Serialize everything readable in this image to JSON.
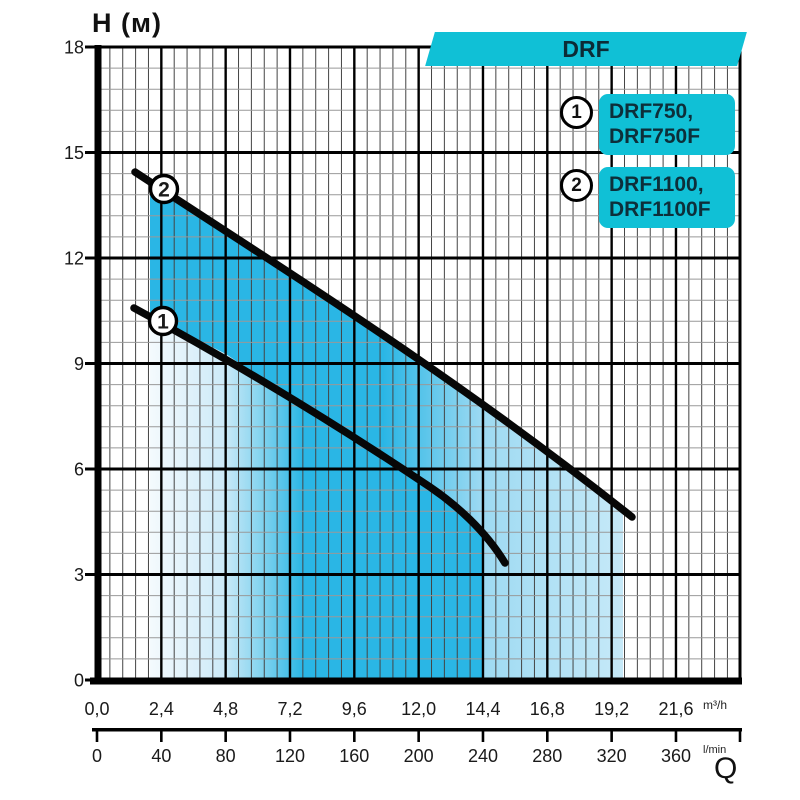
{
  "banner": {
    "label": "DRF"
  },
  "axis_title": "H (м)",
  "q_label": "Q",
  "units": {
    "flow_m3h": "m³/h",
    "flow_lmin": "l/min"
  },
  "legend": [
    {
      "num": "1",
      "lines": [
        "DRF750,",
        "DRF750F"
      ]
    },
    {
      "num": "2",
      "lines": [
        "DRF1100,",
        "DRF1100F"
      ]
    }
  ],
  "colors": {
    "cyan_banner": "#10c0d6",
    "fill_dark": "#2ab6e5",
    "fill_light": "#9edaf2",
    "fill_light_right": "#c6e9f8",
    "fill_pale_left": "#f4fafd",
    "curve": "#070707",
    "grid_major": "#000000",
    "grid_minor_v": "#444444",
    "grid_minor_h": "#999999"
  },
  "chart_data": {
    "type": "line",
    "title": "DRF pump performance curves",
    "xlabel_primary": "Q (m³/h)",
    "xlabel_secondary": "Q (l/min)",
    "ylabel": "H (м)",
    "x_ticks_m3h": [
      "0,0",
      "2,4",
      "4,8",
      "7,2",
      "9,6",
      "12,0",
      "14,4",
      "16,8",
      "19,2",
      "21,6"
    ],
    "x_ticks_m3h_values": [
      0.0,
      2.4,
      4.8,
      7.2,
      9.6,
      12.0,
      14.4,
      16.8,
      19.2,
      21.6
    ],
    "x_ticks_lmin": [
      "0",
      "40",
      "80",
      "120",
      "160",
      "200",
      "240",
      "280",
      "320",
      "360"
    ],
    "x_ticks_lmin_values": [
      0,
      40,
      80,
      120,
      160,
      200,
      240,
      280,
      320,
      360
    ],
    "y_ticks": [
      "0",
      "3",
      "6",
      "9",
      "12",
      "15",
      "18"
    ],
    "y_ticks_values": [
      0,
      3,
      6,
      9,
      12,
      15,
      18
    ],
    "xlim_m3h": [
      0,
      24
    ],
    "ylim": [
      0,
      18
    ],
    "grid": true,
    "legend_position": "top-right",
    "series": [
      {
        "name": "DRF750, DRF750F",
        "marker_label": "1",
        "points_m3h_H": [
          [
            1.4,
            10.6
          ],
          [
            2.4,
            10.2
          ],
          [
            4.8,
            9.3
          ],
          [
            7.2,
            8.0
          ],
          [
            9.6,
            6.9
          ],
          [
            12.0,
            5.7
          ],
          [
            13.6,
            4.9
          ],
          [
            15.1,
            3.4
          ]
        ]
      },
      {
        "name": "DRF1100, DRF1100F",
        "marker_label": "2",
        "points_m3h_H": [
          [
            1.4,
            14.4
          ],
          [
            2.4,
            13.9
          ],
          [
            4.8,
            12.7
          ],
          [
            7.2,
            11.6
          ],
          [
            9.6,
            10.4
          ],
          [
            12.0,
            9.2
          ],
          [
            14.4,
            7.9
          ],
          [
            16.8,
            6.5
          ],
          [
            19.2,
            5.1
          ],
          [
            19.9,
            4.6
          ]
        ]
      }
    ]
  }
}
